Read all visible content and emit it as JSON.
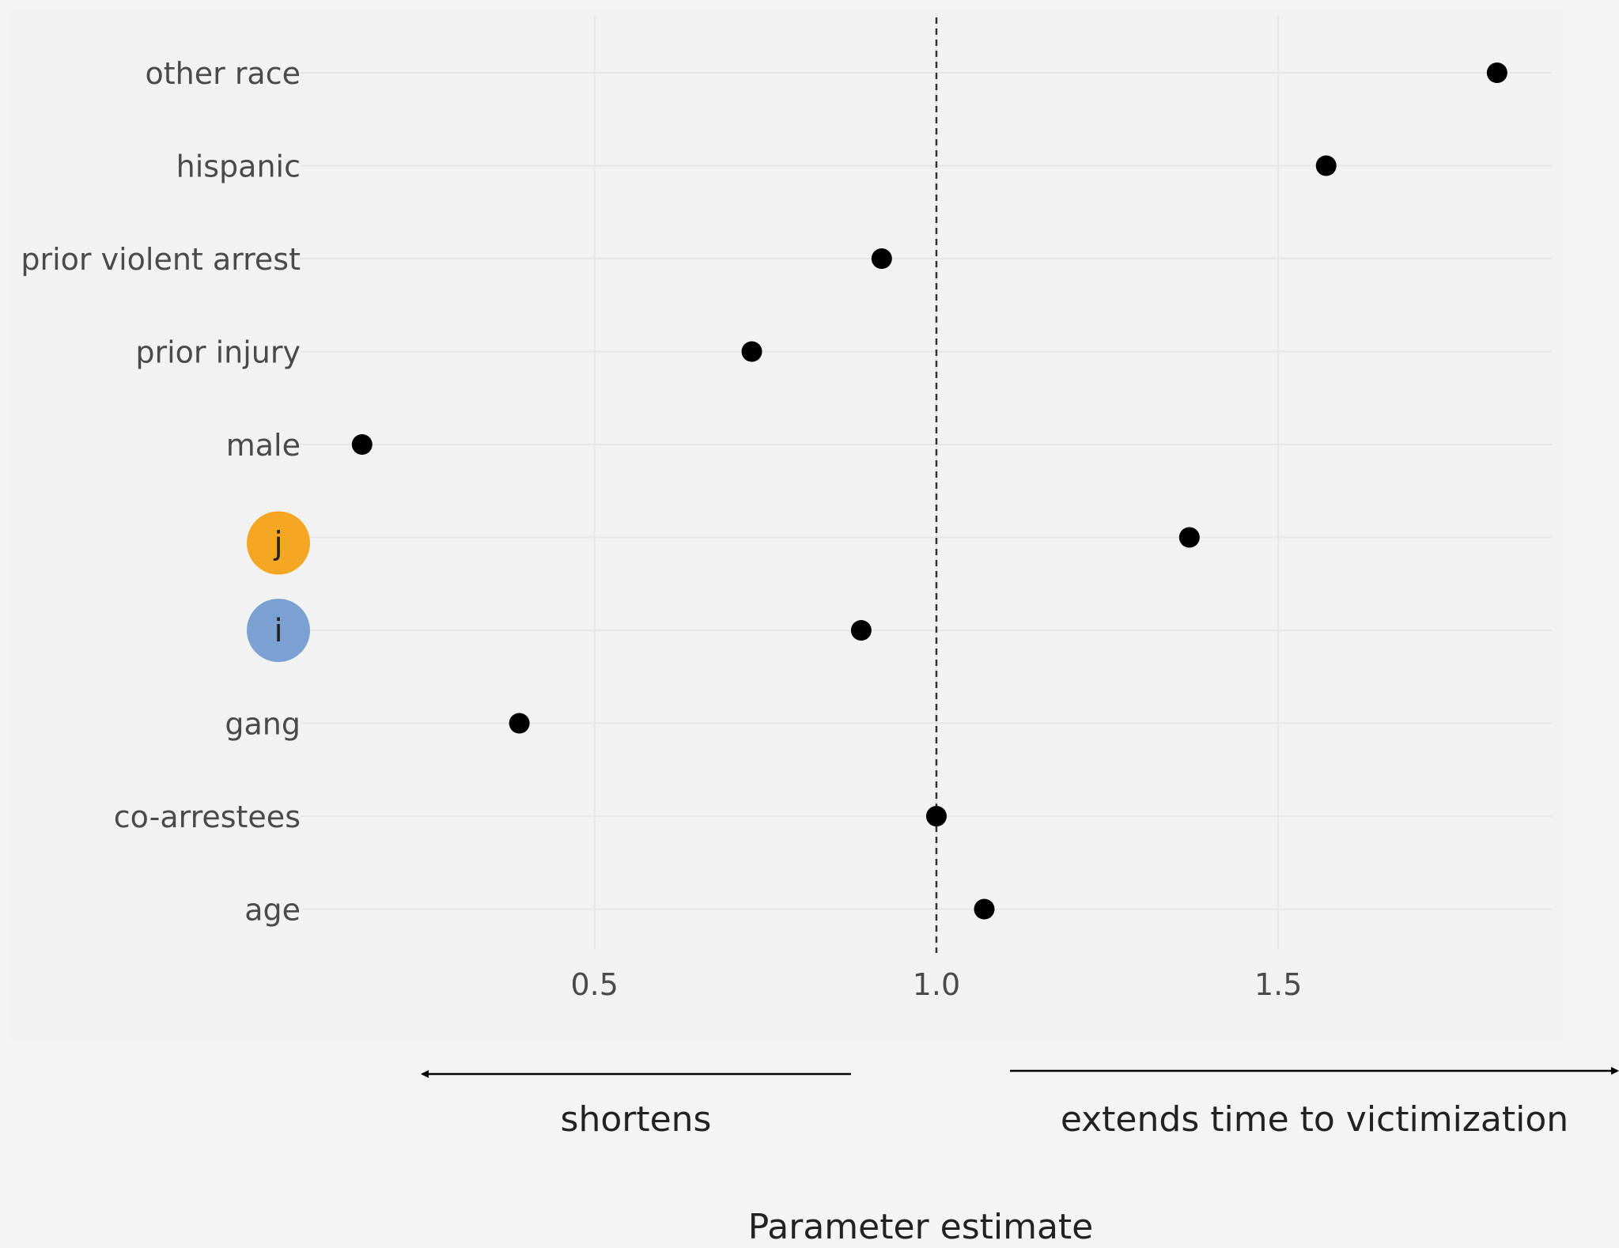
{
  "chart_data": {
    "type": "scatter",
    "categories": [
      "other race",
      "hispanic",
      "prior violent arrest",
      "prior injury",
      "male",
      "j",
      "i",
      "gang",
      "co-arrestees",
      "age"
    ],
    "values": [
      1.82,
      1.57,
      0.92,
      0.73,
      0.16,
      1.37,
      0.89,
      0.39,
      1.0,
      1.07
    ],
    "highlighted_categories": {
      "j": "#f5a623",
      "i": "#7aa1d2"
    },
    "x_ticks": [
      "0.5",
      "1.0",
      "1.5"
    ],
    "x_tick_values": [
      0.5,
      1.0,
      1.5
    ],
    "xlim": [
      0.07,
      1.9
    ],
    "reference_line": 1.0,
    "xlabel": "Parameter estimate",
    "left_annotation": "shortens",
    "right_annotation": "extends time to victimization",
    "grid": true,
    "colors": {
      "background": "#f4f4f4",
      "panel": "#f2f2f2",
      "grid": "#e6e6e6",
      "point": "#000000",
      "text": "#4a4a4a"
    }
  }
}
